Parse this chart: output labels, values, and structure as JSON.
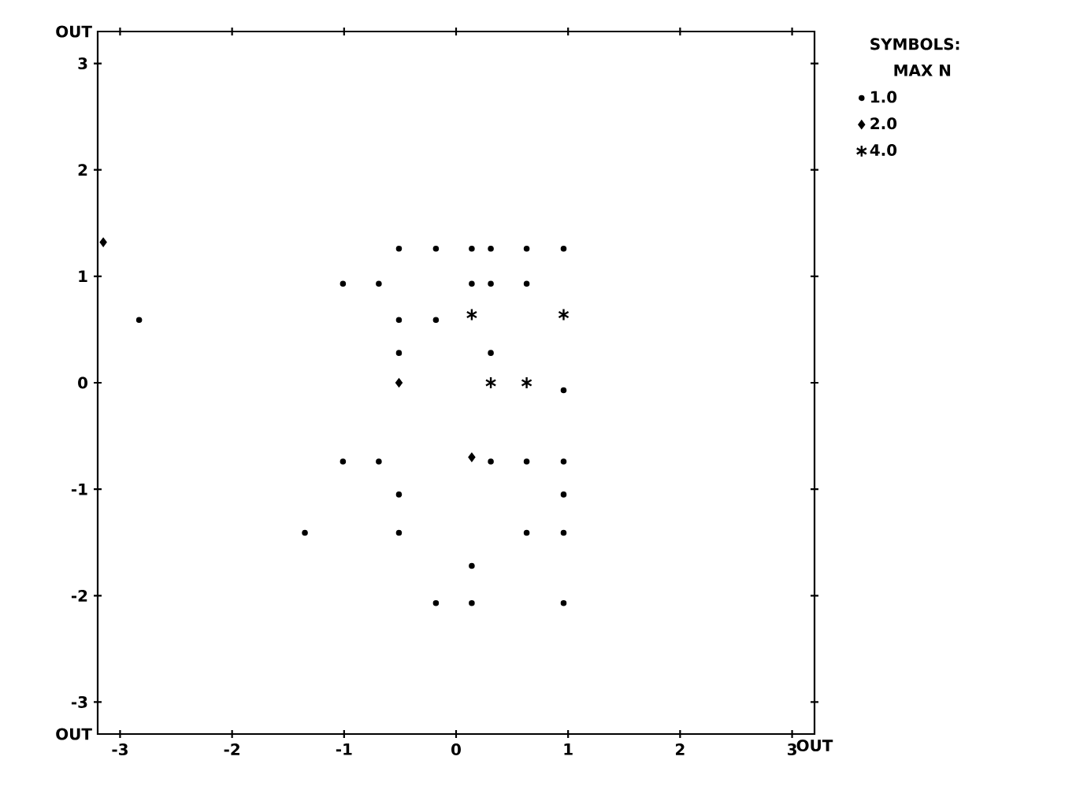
{
  "chart_data": {
    "type": "scatter",
    "xlim": [
      -3.2,
      3.2
    ],
    "ylim": [
      -3.3,
      3.3
    ],
    "xticks": [
      -3,
      -2,
      -1,
      0,
      1,
      2,
      3,
      {
        "value": 3.2,
        "label": "OUT"
      }
    ],
    "yticks": [
      {
        "value": -3.3,
        "label": "OUT"
      },
      -3,
      -2,
      -1,
      0,
      1,
      2,
      3,
      {
        "value": 3.3,
        "label": "OUT"
      }
    ],
    "grid": false,
    "legend": "right",
    "legend_title": "SYMBOLS:",
    "annotations": [
      "MAX N"
    ],
    "series": [
      {
        "name": "1.0",
        "color": "#000000",
        "marker": "circle",
        "x": [
          -0.51,
          -0.18,
          0.14,
          0.31,
          0.63,
          0.96,
          -1.01,
          -0.69,
          0.14,
          0.31,
          0.63,
          -2.83,
          -0.51,
          -0.18,
          -0.51,
          0.31,
          0.96,
          -1.01,
          -0.69,
          0.31,
          0.63,
          0.96,
          -0.51,
          0.96,
          -1.35,
          -0.51,
          0.63,
          0.96,
          0.14,
          -0.18,
          0.14,
          0.96
        ],
        "values": [
          1.26,
          1.26,
          1.26,
          1.26,
          1.26,
          1.26,
          0.93,
          0.93,
          0.93,
          0.93,
          0.93,
          0.59,
          0.59,
          0.59,
          0.28,
          0.28,
          -0.07,
          -0.74,
          -0.74,
          -0.74,
          -0.74,
          -0.74,
          -1.05,
          -1.05,
          -1.41,
          -1.41,
          -1.41,
          -1.41,
          -1.72,
          -2.07,
          -2.07,
          -2.07
        ]
      },
      {
        "name": "2.0",
        "color": "#000000",
        "marker": "diamond",
        "x": [
          -3.15,
          -0.51,
          0.14
        ],
        "values": [
          1.32,
          0.0,
          -0.7
        ]
      },
      {
        "name": "4.0",
        "color": "#000000",
        "marker": "cross",
        "x": [
          0.14,
          0.96,
          0.31,
          0.63
        ],
        "values": [
          0.64,
          0.64,
          0.0,
          0.0
        ]
      }
    ]
  }
}
